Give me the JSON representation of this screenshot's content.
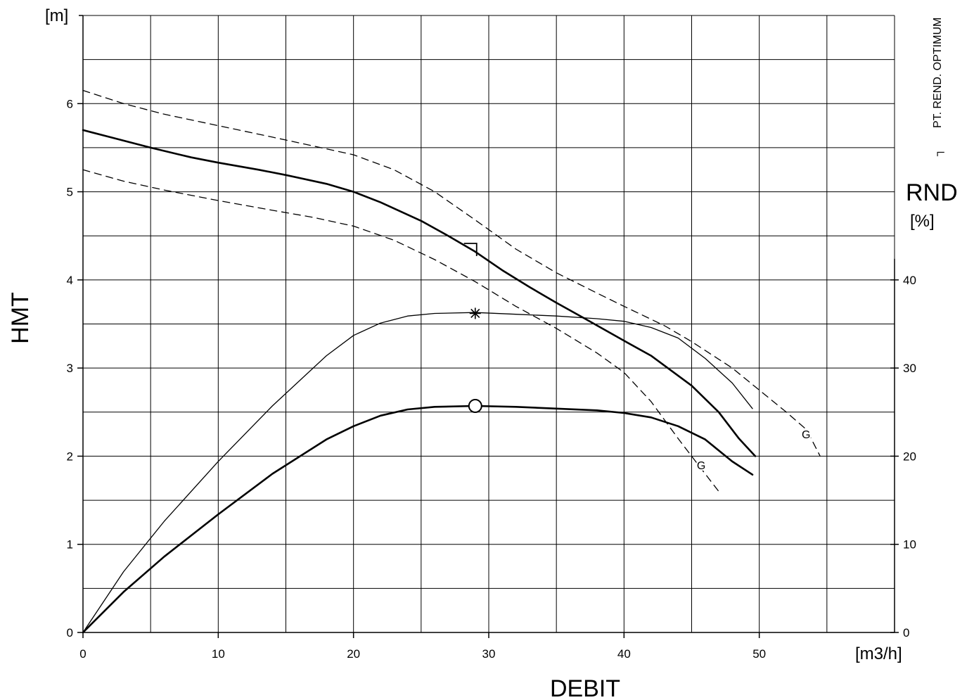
{
  "chart_data": {
    "type": "line",
    "xlabel": "DEBIT",
    "x_unit": "[m3/h]",
    "ylabel": "HMT",
    "y_unit": "[m]",
    "y2label": "RND",
    "y2_unit": "[%]",
    "side_label": "PT. REND. OPTIMUM",
    "side_symbol": "┐",
    "xlim": [
      0,
      60
    ],
    "ylim": [
      0,
      7
    ],
    "y2lim": [
      0,
      40
    ],
    "x_ticks": [
      0,
      10,
      20,
      30,
      40,
      50
    ],
    "y_ticks": [
      0,
      1,
      2,
      3,
      4,
      5,
      6
    ],
    "y2_ticks": [
      0,
      10,
      20,
      30,
      40
    ],
    "grid": true,
    "series": [
      {
        "axis": "left",
        "style": "solid-thick",
        "points": [
          [
            0,
            5.7
          ],
          [
            2,
            5.62
          ],
          [
            5,
            5.5
          ],
          [
            8,
            5.39
          ],
          [
            10,
            5.33
          ],
          [
            13,
            5.25
          ],
          [
            15,
            5.19
          ],
          [
            18,
            5.09
          ],
          [
            20,
            5.0
          ],
          [
            22,
            4.88
          ],
          [
            25,
            4.67
          ],
          [
            27,
            4.5
          ],
          [
            29,
            4.32
          ],
          [
            31,
            4.11
          ],
          [
            33,
            3.92
          ],
          [
            35,
            3.74
          ],
          [
            37,
            3.57
          ],
          [
            40,
            3.31
          ],
          [
            42,
            3.14
          ],
          [
            45,
            2.8
          ],
          [
            47,
            2.5
          ],
          [
            48.5,
            2.2
          ],
          [
            49.7,
            2.0
          ]
        ]
      },
      {
        "axis": "left",
        "style": "dashed",
        "label": "G",
        "points": [
          [
            0,
            6.15
          ],
          [
            3,
            6.0
          ],
          [
            6,
            5.88
          ],
          [
            10,
            5.75
          ],
          [
            14,
            5.62
          ],
          [
            17,
            5.52
          ],
          [
            20,
            5.42
          ],
          [
            23,
            5.25
          ],
          [
            26,
            5.0
          ],
          [
            29,
            4.68
          ],
          [
            32,
            4.35
          ],
          [
            35,
            4.08
          ],
          [
            38,
            3.85
          ],
          [
            40,
            3.7
          ],
          [
            43,
            3.48
          ],
          [
            45,
            3.3
          ],
          [
            48,
            3.0
          ],
          [
            50,
            2.75
          ],
          [
            52,
            2.5
          ],
          [
            53.5,
            2.3
          ],
          [
            54.5,
            2.0
          ]
        ]
      },
      {
        "axis": "left",
        "style": "dashed",
        "label": "G",
        "points": [
          [
            0,
            5.25
          ],
          [
            3,
            5.12
          ],
          [
            6,
            5.02
          ],
          [
            10,
            4.9
          ],
          [
            14,
            4.79
          ],
          [
            17,
            4.71
          ],
          [
            20,
            4.61
          ],
          [
            23,
            4.45
          ],
          [
            26,
            4.23
          ],
          [
            29,
            3.98
          ],
          [
            32,
            3.7
          ],
          [
            35,
            3.45
          ],
          [
            38,
            3.17
          ],
          [
            40,
            2.95
          ],
          [
            42,
            2.62
          ],
          [
            44,
            2.2
          ],
          [
            45.5,
            1.9
          ],
          [
            47,
            1.6
          ]
        ]
      },
      {
        "axis": "right",
        "style": "solid-thin",
        "points": [
          [
            0,
            0
          ],
          [
            3,
            6.9
          ],
          [
            6,
            12.6
          ],
          [
            10,
            19.4
          ],
          [
            14,
            25.7
          ],
          [
            18,
            31.4
          ],
          [
            20,
            33.7
          ],
          [
            22,
            35.1
          ],
          [
            24,
            35.9
          ],
          [
            26,
            36.2
          ],
          [
            29,
            36.3
          ],
          [
            32,
            36.1
          ],
          [
            35,
            35.9
          ],
          [
            38,
            35.6
          ],
          [
            40,
            35.3
          ],
          [
            42,
            34.6
          ],
          [
            44,
            33.4
          ],
          [
            46,
            31.1
          ],
          [
            48,
            28.3
          ],
          [
            49.5,
            25.4
          ]
        ]
      },
      {
        "axis": "right",
        "style": "solid-thick",
        "points": [
          [
            0,
            0
          ],
          [
            3,
            4.6
          ],
          [
            6,
            8.6
          ],
          [
            10,
            13.4
          ],
          [
            14,
            18.0
          ],
          [
            18,
            21.9
          ],
          [
            20,
            23.4
          ],
          [
            22,
            24.6
          ],
          [
            24,
            25.3
          ],
          [
            26,
            25.6
          ],
          [
            29,
            25.7
          ],
          [
            32,
            25.6
          ],
          [
            35,
            25.4
          ],
          [
            38,
            25.2
          ],
          [
            40,
            24.9
          ],
          [
            42,
            24.4
          ],
          [
            44,
            23.4
          ],
          [
            46,
            21.9
          ],
          [
            48,
            19.4
          ],
          [
            49.5,
            17.9
          ]
        ]
      }
    ],
    "markers": [
      {
        "type": "optimum-bracket",
        "x": 29,
        "y": 4.35,
        "axis": "left"
      },
      {
        "type": "star",
        "x": 29,
        "y": 36.2,
        "axis": "right"
      },
      {
        "type": "circle",
        "x": 29,
        "y": 25.7,
        "axis": "right"
      }
    ]
  }
}
